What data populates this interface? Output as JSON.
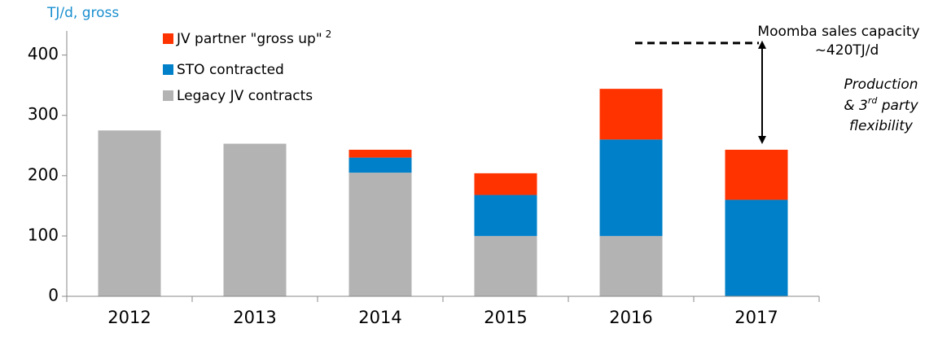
{
  "chart_data": {
    "type": "stacked_bar",
    "y_axis_label": "TJ/d, gross",
    "categories": [
      "2012",
      "2013",
      "2014",
      "2015",
      "2016",
      "2017"
    ],
    "series": [
      {
        "name": "Legacy JV contracts",
        "color": "#b3b3b3",
        "values": [
          275,
          253,
          205,
          100,
          100,
          0
        ]
      },
      {
        "name": "STO contracted",
        "color": "#0080c8",
        "values": [
          0,
          0,
          25,
          68,
          160,
          160
        ]
      },
      {
        "name": "JV partner \"gross up\"",
        "color": "#ff3300",
        "values": [
          0,
          0,
          13,
          36,
          84,
          83
        ]
      }
    ],
    "legend_footnote": "2",
    "ylim": [
      0,
      440
    ],
    "yticks": [
      0,
      100,
      200,
      300,
      400
    ],
    "capacity_line": 420,
    "capacity_label": [
      "Moomba sales capacity",
      "~420TJ/d"
    ],
    "flexibility_note": {
      "line1": "Production",
      "line2": [
        "& 3",
        "rd",
        " party"
      ],
      "line3": "flexibility"
    }
  }
}
